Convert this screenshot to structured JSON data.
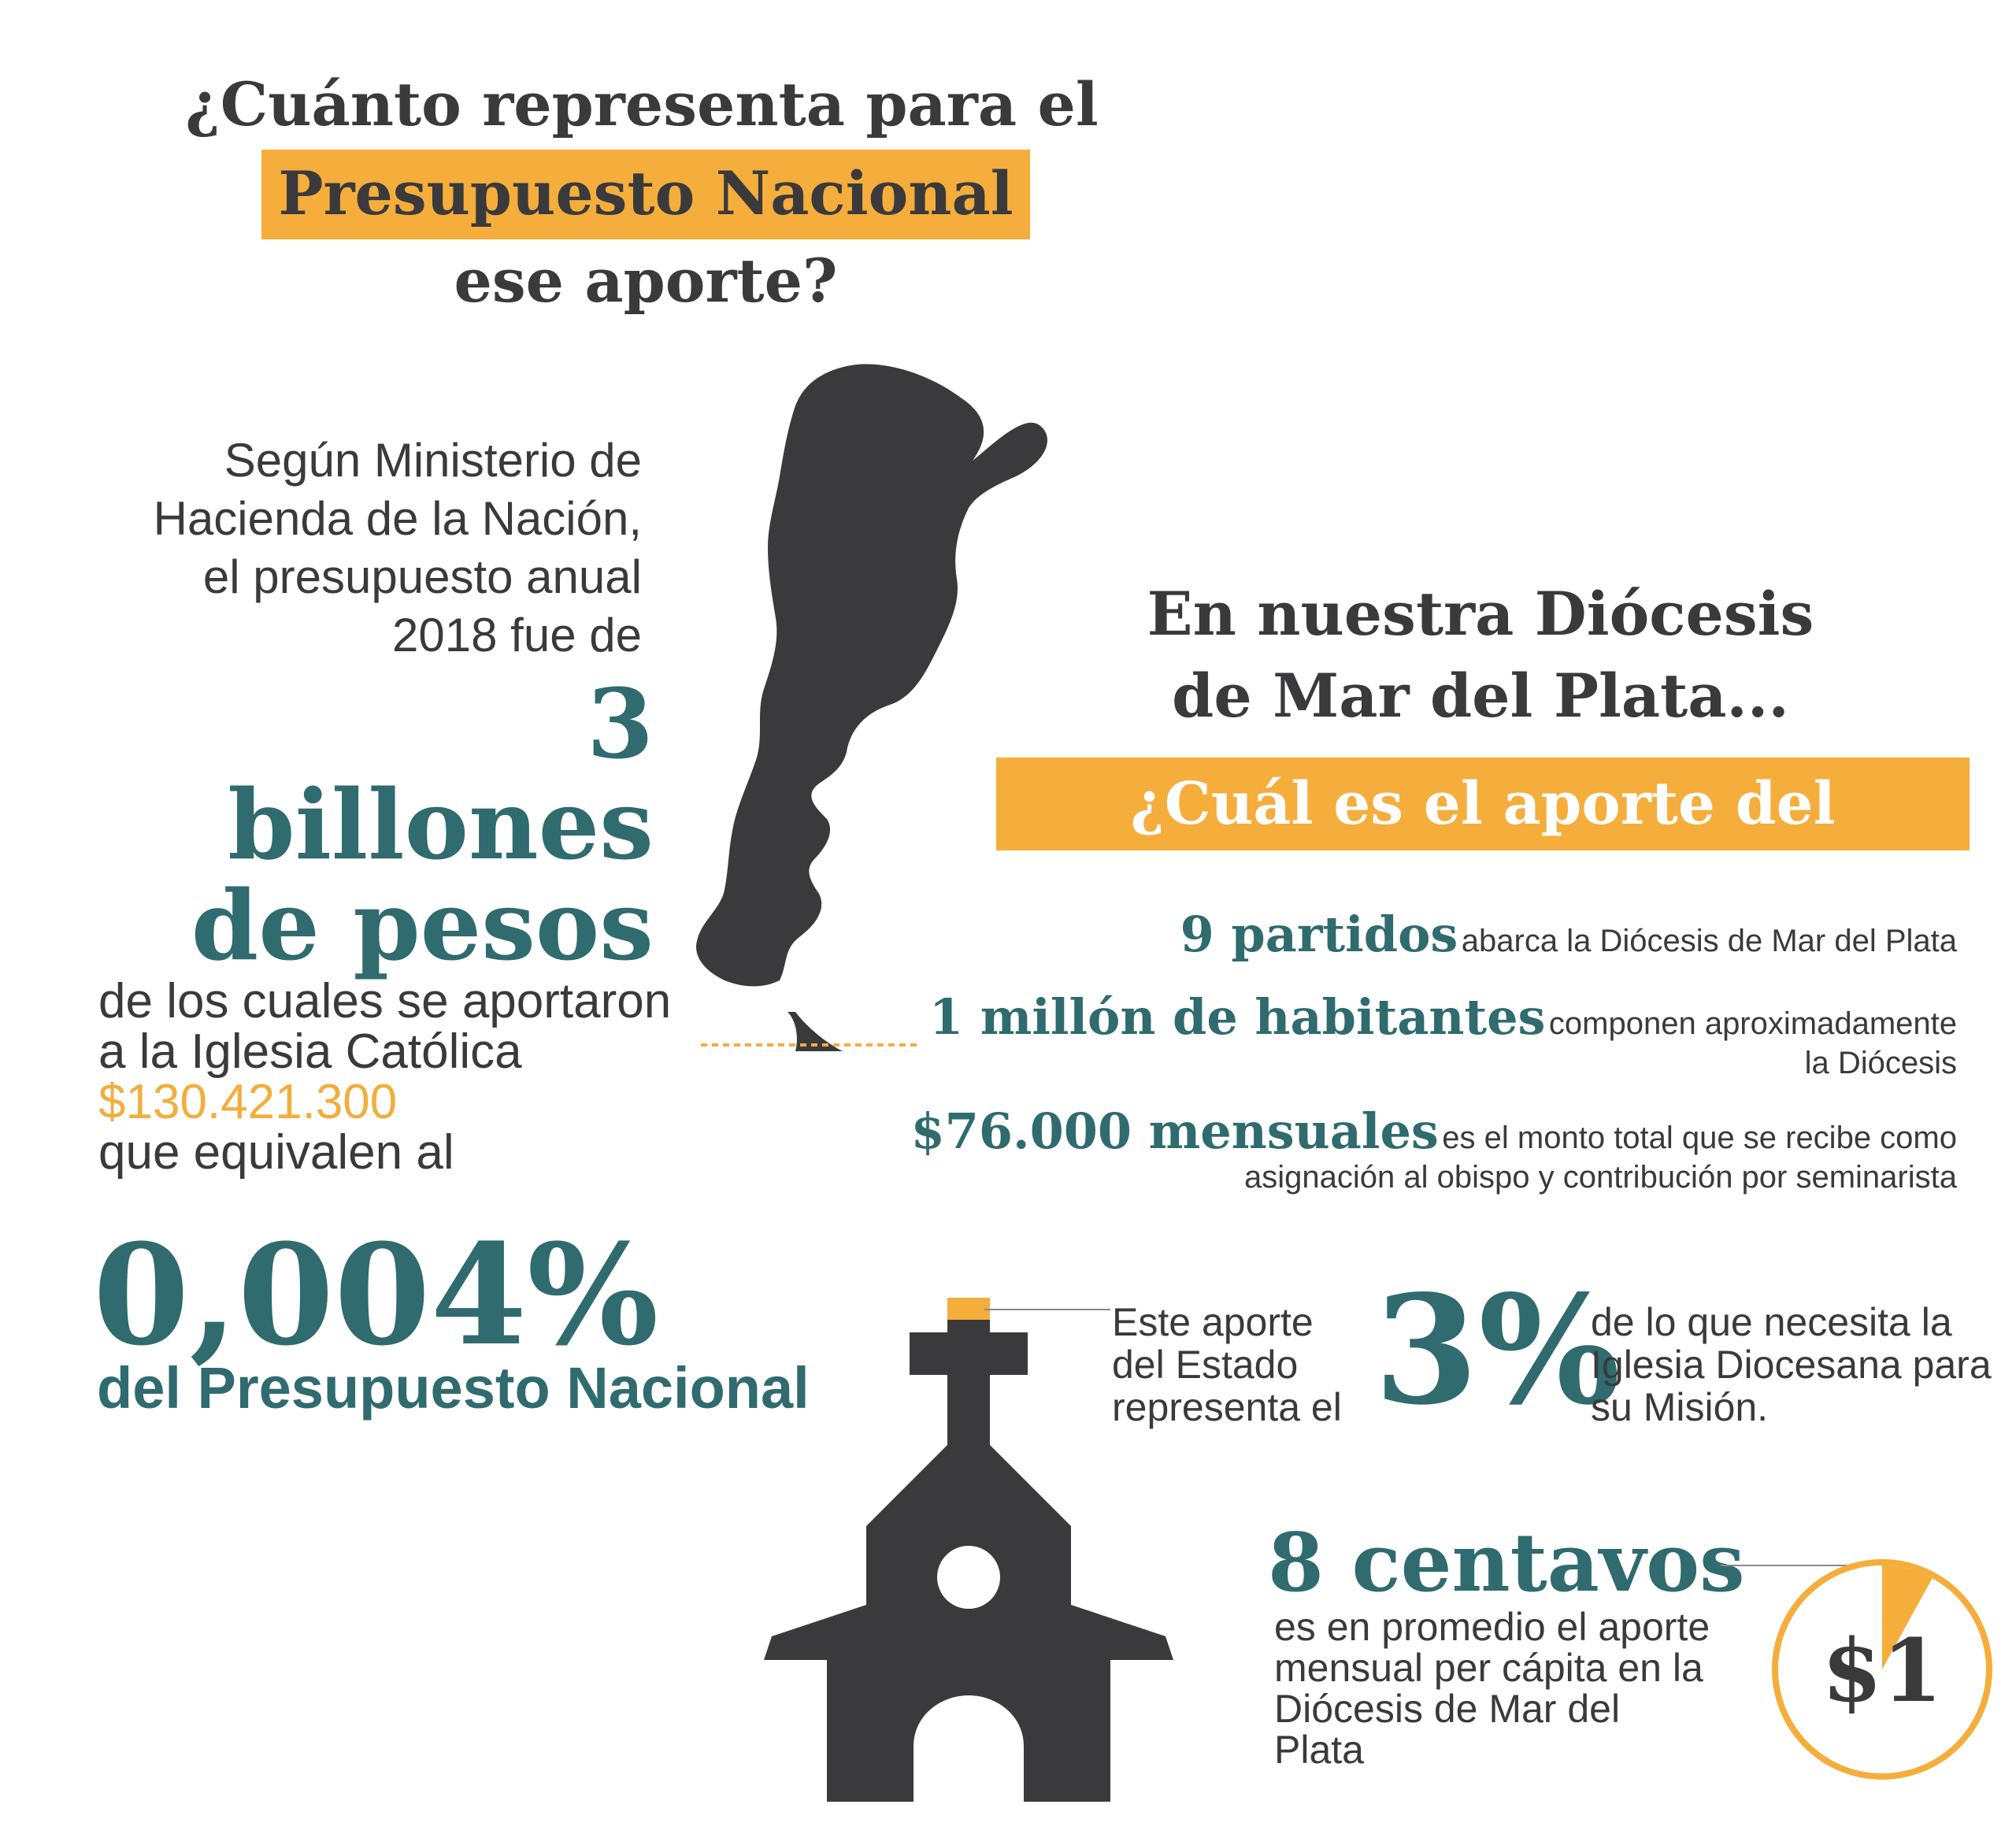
{
  "header": {
    "line1": "¿Cuánto representa para el",
    "line2": "Presupuesto Nacional",
    "line3": "ese aporte?"
  },
  "national": {
    "ministry_lines": [
      "Según Ministerio de",
      "Hacienda de la Nación,",
      "el presupuesto anual",
      "2018 fue de"
    ],
    "budget_lines": [
      "3 billones",
      "de pesos"
    ],
    "contribution_lines": [
      "de los cuales se aportaron",
      "a la Iglesia Católica"
    ],
    "amount": "$130.421.300",
    "equivalent": "que equivalen al",
    "percent": "0,004%",
    "percent_label": "del Presupuesto Nacional"
  },
  "diocese": {
    "heading_lines": [
      "En nuestra Diócesis",
      "de Mar del Plata..."
    ],
    "question": "¿Cuál es el aporte del Estado?",
    "facts": [
      {
        "big": "9 partidos",
        "small": "abarca la Diócesis de Mar del Plata"
      },
      {
        "big": "1 millón de habitantes",
        "small": "componen aproximadamente",
        "small2": "la Diócesis"
      },
      {
        "big": "$76.000 mensuales",
        "small": "es el monto total que se recibe como",
        "small2": "asignación al obispo y contribución por seminarista"
      }
    ],
    "estado_lines": [
      "Este aporte",
      "del Estado",
      "representa el"
    ],
    "three_percent": "3%",
    "mision_lines": [
      "de lo que necesita la",
      "Iglesia Diocesana para",
      "su Misión."
    ],
    "centavos": "8 centavos",
    "promedio_lines": [
      "es en promedio el aporte",
      "mensual per cápita en la",
      "Diócesis de Mar del Plata"
    ],
    "coin": "$1",
    "coin_fraction": 0.08
  },
  "colors": {
    "accent": "#f5ad3b",
    "teal": "#2f6b6f",
    "dark": "#3a3a3c"
  },
  "icons": [
    "argentina-map-icon",
    "church-icon",
    "coin-pie-icon"
  ]
}
